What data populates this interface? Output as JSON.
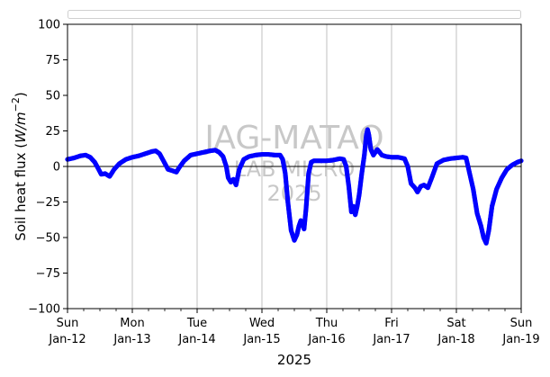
{
  "chart_data": {
    "type": "scatter",
    "title": "",
    "xlabel": "2025",
    "ylabel": "Soil heat flux (W/m⁻²)",
    "ylabel_parts": {
      "text": "Soil heat flux (",
      "unit_main": "W/m",
      "unit_sup": "−2",
      "close": ")"
    },
    "x_start": "Sun Jan-12",
    "x_end": "Sun Jan-19",
    "x_ticks": [
      {
        "day": "Sun",
        "date": "Jan-12"
      },
      {
        "day": "Mon",
        "date": "Jan-13"
      },
      {
        "day": "Tue",
        "date": "Jan-14"
      },
      {
        "day": "Wed",
        "date": "Jan-15"
      },
      {
        "day": "Thu",
        "date": "Jan-16"
      },
      {
        "day": "Fri",
        "date": "Jan-17"
      },
      {
        "day": "Sat",
        "date": "Jan-18"
      },
      {
        "day": "Sun",
        "date": "Jan-19"
      }
    ],
    "y_ticks": [
      100,
      75,
      50,
      25,
      0,
      -25,
      -50,
      -75,
      -100
    ],
    "ylim": [
      -100,
      100
    ],
    "xlim_days": [
      0,
      7
    ],
    "grid": "vertical",
    "zero_line": true,
    "legend": "top (empty)",
    "series": [
      {
        "color": "#0000ff",
        "points": [
          [
            0.0,
            5
          ],
          [
            0.1,
            6
          ],
          [
            0.2,
            7.5
          ],
          [
            0.28,
            8
          ],
          [
            0.35,
            6.5
          ],
          [
            0.42,
            3
          ],
          [
            0.48,
            -2
          ],
          [
            0.52,
            -5.5
          ],
          [
            0.58,
            -5
          ],
          [
            0.65,
            -7
          ],
          [
            0.72,
            -2
          ],
          [
            0.8,
            2
          ],
          [
            0.9,
            5
          ],
          [
            1.0,
            6.5
          ],
          [
            1.1,
            7.5
          ],
          [
            1.2,
            9
          ],
          [
            1.3,
            10.5
          ],
          [
            1.36,
            11
          ],
          [
            1.42,
            9
          ],
          [
            1.48,
            4
          ],
          [
            1.55,
            -2
          ],
          [
            1.62,
            -3
          ],
          [
            1.68,
            -4
          ],
          [
            1.72,
            -1
          ],
          [
            1.8,
            4
          ],
          [
            1.9,
            8
          ],
          [
            2.0,
            9
          ],
          [
            2.1,
            10
          ],
          [
            2.2,
            11
          ],
          [
            2.28,
            11.5
          ],
          [
            2.34,
            10
          ],
          [
            2.4,
            7
          ],
          [
            2.45,
            0
          ],
          [
            2.48,
            -8
          ],
          [
            2.52,
            -11
          ],
          [
            2.56,
            -9
          ],
          [
            2.6,
            -13
          ],
          [
            2.65,
            -2
          ],
          [
            2.72,
            5
          ],
          [
            2.8,
            7
          ],
          [
            2.9,
            8
          ],
          [
            3.0,
            8.5
          ],
          [
            3.1,
            8.5
          ],
          [
            3.2,
            8
          ],
          [
            3.28,
            8
          ],
          [
            3.32,
            5
          ],
          [
            3.36,
            -5
          ],
          [
            3.4,
            -25
          ],
          [
            3.45,
            -45
          ],
          [
            3.5,
            -52
          ],
          [
            3.54,
            -48
          ],
          [
            3.57,
            -42
          ],
          [
            3.6,
            -38
          ],
          [
            3.62,
            -40
          ],
          [
            3.65,
            -44
          ],
          [
            3.68,
            -30
          ],
          [
            3.72,
            -5
          ],
          [
            3.76,
            3
          ],
          [
            3.8,
            4
          ],
          [
            3.9,
            4
          ],
          [
            4.0,
            4
          ],
          [
            4.1,
            4.5
          ],
          [
            4.2,
            5.5
          ],
          [
            4.26,
            5
          ],
          [
            4.3,
            0
          ],
          [
            4.34,
            -14
          ],
          [
            4.38,
            -32
          ],
          [
            4.41,
            -28
          ],
          [
            4.44,
            -34
          ],
          [
            4.47,
            -28
          ],
          [
            4.5,
            -20
          ],
          [
            4.54,
            -5
          ],
          [
            4.58,
            8
          ],
          [
            4.61,
            22
          ],
          [
            4.63,
            26
          ],
          [
            4.65,
            22
          ],
          [
            4.68,
            12
          ],
          [
            4.72,
            8
          ],
          [
            4.78,
            12
          ],
          [
            4.85,
            8
          ],
          [
            4.92,
            7
          ],
          [
            5.0,
            6.5
          ],
          [
            5.1,
            6.5
          ],
          [
            5.2,
            5.5
          ],
          [
            5.25,
            0
          ],
          [
            5.3,
            -12
          ],
          [
            5.36,
            -15
          ],
          [
            5.4,
            -18
          ],
          [
            5.45,
            -14
          ],
          [
            5.5,
            -13
          ],
          [
            5.56,
            -15
          ],
          [
            5.62,
            -8
          ],
          [
            5.7,
            2
          ],
          [
            5.8,
            4.5
          ],
          [
            5.9,
            5.5
          ],
          [
            6.0,
            6
          ],
          [
            6.1,
            6.5
          ],
          [
            6.15,
            6
          ],
          [
            6.2,
            -4
          ],
          [
            6.26,
            -16
          ],
          [
            6.32,
            -33
          ],
          [
            6.38,
            -42
          ],
          [
            6.42,
            -50
          ],
          [
            6.46,
            -54
          ],
          [
            6.5,
            -45
          ],
          [
            6.55,
            -28
          ],
          [
            6.62,
            -16
          ],
          [
            6.7,
            -8
          ],
          [
            6.78,
            -2
          ],
          [
            6.86,
            1
          ],
          [
            6.94,
            3
          ],
          [
            7.0,
            4
          ]
        ]
      }
    ]
  },
  "watermark": {
    "line1": "JAG-MATAQ",
    "line2": "LAB MICRO",
    "line3": "2025"
  }
}
